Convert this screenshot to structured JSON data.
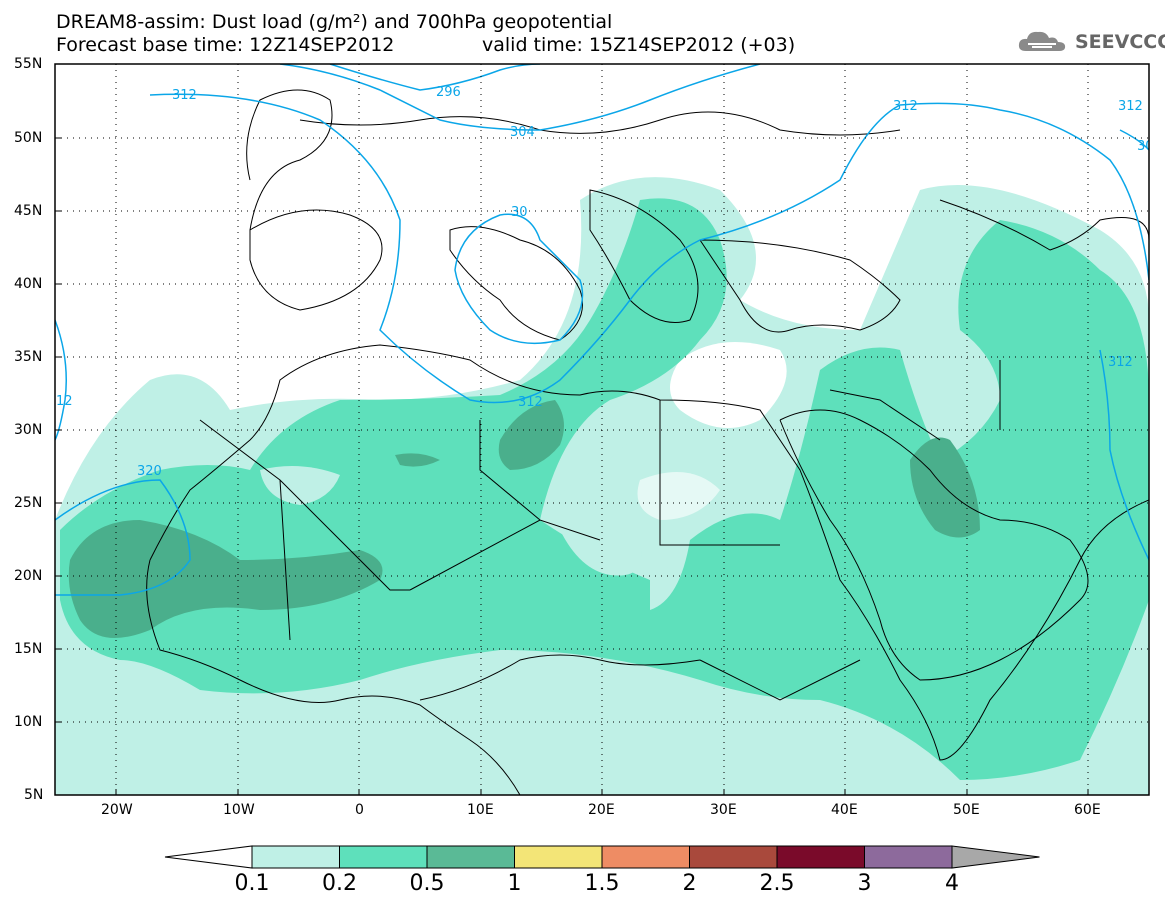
{
  "header": {
    "title_line1": "DREAM8-assim: Dust load (g/m²) and 700hPa geopotential",
    "title_line2": "Forecast base time: 12Z14SEP2012",
    "valid_time": "valid time: 15Z14SEP2012 (+03)",
    "logo_text": "SEEVCCC",
    "logo_icon": "cloud-icon"
  },
  "map": {
    "lat_labels": [
      "55N",
      "50N",
      "45N",
      "40N",
      "35N",
      "30N",
      "25N",
      "20N",
      "15N",
      "10N",
      "5N"
    ],
    "lon_labels": [
      "20W",
      "10W",
      "0",
      "10E",
      "20E",
      "30E",
      "40E",
      "50E",
      "60E"
    ],
    "contour_labels": [
      "312",
      "296",
      "304",
      "312",
      "30",
      "312",
      "312",
      "320",
      "312",
      "12",
      "30"
    ],
    "fill_colors": {
      "light": "#bff0e6",
      "medium": "#5ee0bb",
      "dark": "#4aaf8c",
      "land_line": "#000000",
      "contour": "#0ba6e8"
    }
  },
  "colorbar": {
    "labels": [
      "0.1",
      "0.2",
      "0.5",
      "1",
      "1.5",
      "2",
      "2.5",
      "3",
      "4"
    ],
    "colors": [
      "#bff0e6",
      "#5ee0bb",
      "#5aba96",
      "#f3e577",
      "#ee8c64",
      "#a9493c",
      "#7a0a2a",
      "#8d6a9c",
      "#a8a8a8"
    ]
  }
}
